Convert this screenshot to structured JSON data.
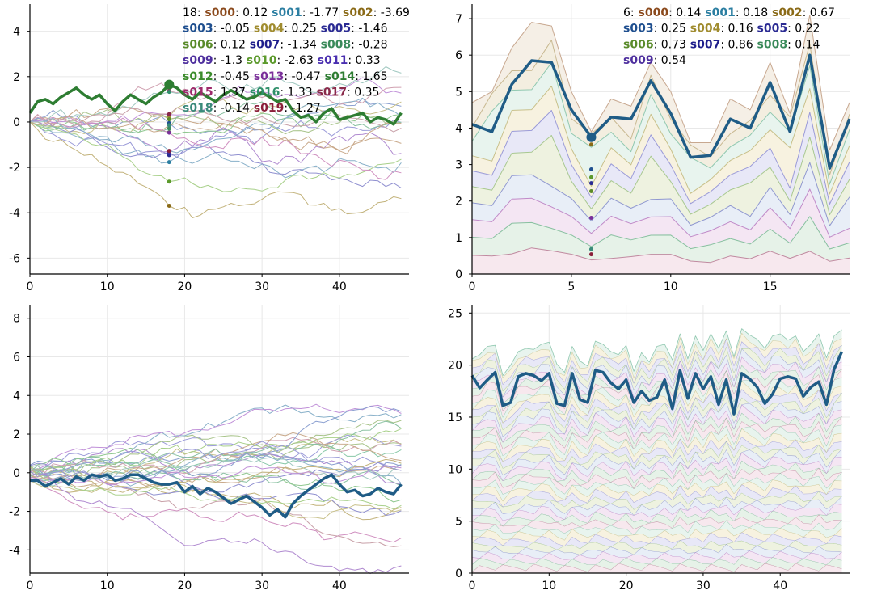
{
  "chart_data": [
    {
      "type": "line",
      "title": "",
      "xlabel": "",
      "ylabel": "",
      "xlim": [
        0,
        49
      ],
      "ylim": [
        -6.7,
        5.2
      ],
      "x_ticks": [
        0,
        10,
        20,
        30,
        40
      ],
      "y_ticks": [
        -6,
        -4,
        -2,
        0,
        2,
        4
      ],
      "grid": true,
      "stacked": false,
      "n_series": 20,
      "highlighted_series": "s014",
      "hover_index": 18,
      "legend": {
        "placement": "top-right",
        "rows": [
          [
            "18:",
            "s000",
            "0.12",
            "s001",
            "-1.77",
            "s002",
            "-3.69"
          ],
          [
            "s003",
            "-0.05",
            "s004",
            "0.25",
            "s005",
            "-1.46"
          ],
          [
            "s006",
            "0.12",
            "s007",
            "-1.34",
            "s008",
            "-0.28"
          ],
          [
            "s009",
            "-1.3",
            "s010",
            "-2.63",
            "s011",
            "0.33"
          ],
          [
            "s012",
            "-0.45",
            "s013",
            "-0.47",
            "s014",
            "1.65"
          ],
          [
            "s015",
            "1.37",
            "s016",
            "1.33",
            "s017",
            "0.35"
          ],
          [
            "s018",
            "-0.14",
            "s019",
            "-1.27"
          ]
        ],
        "boxed": "s014"
      },
      "hover_values": {
        "s000": 0.12,
        "s001": -1.77,
        "s002": -3.69,
        "s003": -0.05,
        "s004": 0.25,
        "s005": -1.46,
        "s006": 0.12,
        "s007": -1.34,
        "s008": -0.28,
        "s009": -1.3,
        "s010": -2.63,
        "s011": 0.33,
        "s012": -0.45,
        "s013": -0.47,
        "s014": 1.65,
        "s015": 1.37,
        "s016": 1.33,
        "s017": 0.35,
        "s018": -0.14,
        "s019": -1.27
      },
      "highlight_values": [
        0.4,
        0.9,
        1.0,
        0.8,
        1.1,
        1.3,
        1.5,
        1.2,
        1.0,
        1.2,
        0.8,
        0.5,
        0.9,
        1.2,
        1.0,
        0.8,
        1.1,
        1.3,
        1.65,
        1.5,
        1.2,
        1.0,
        1.3,
        1.1,
        0.9,
        1.2,
        1.4,
        1.2,
        1.0,
        1.1,
        1.3,
        1.1,
        0.9,
        1.0,
        0.5,
        0.2,
        0.3,
        0.0,
        0.4,
        0.6,
        0.1,
        0.2,
        0.3,
        0.4,
        0.0,
        0.2,
        0.1,
        -0.1,
        0.4
      ]
    },
    {
      "type": "area",
      "title": "",
      "xlabel": "",
      "ylabel": "",
      "xlim": [
        0,
        19
      ],
      "ylim": [
        0,
        7.4
      ],
      "x_ticks": [
        0,
        5,
        10,
        15
      ],
      "y_ticks": [
        0,
        1,
        2,
        3,
        4,
        5,
        6,
        7
      ],
      "grid": true,
      "stacked": true,
      "n_series": 10,
      "highlighted_series": "s001",
      "hover_index": 6,
      "legend": {
        "placement": "top-right",
        "rows": [
          [
            "6:",
            "s000",
            "0.14",
            "s001",
            "0.18",
            "s002",
            "0.67"
          ],
          [
            "s003",
            "0.25",
            "s004",
            "0.16",
            "s005",
            "0.22"
          ],
          [
            "s006",
            "0.73",
            "s007",
            "0.86",
            "s008",
            "0.14"
          ],
          [
            "s009",
            "0.54"
          ]
        ],
        "boxed": "s001"
      },
      "hover_values": {
        "s000": 0.14,
        "s001": 0.18,
        "s002": 0.67,
        "s003": 0.25,
        "s004": 0.16,
        "s005": 0.22,
        "s006": 0.73,
        "s007": 0.86,
        "s008": 0.14,
        "s009": 0.54
      },
      "highlight_values": [
        4.1,
        3.9,
        5.2,
        5.85,
        5.8,
        4.5,
        3.75,
        4.3,
        4.25,
        5.3,
        4.4,
        3.2,
        3.25,
        4.25,
        4.0,
        5.25,
        3.9,
        6.0,
        2.9,
        4.25
      ],
      "top_values": [
        4.7,
        5.0,
        6.2,
        6.9,
        6.8,
        5.0,
        3.9,
        4.8,
        4.6,
        5.8,
        5.0,
        3.6,
        3.6,
        4.8,
        4.5,
        5.8,
        4.4,
        7.1,
        3.4,
        4.7
      ]
    },
    {
      "type": "line",
      "title": "",
      "xlabel": "",
      "ylabel": "",
      "xlim": [
        0,
        49
      ],
      "ylim": [
        -5.2,
        8.7
      ],
      "x_ticks": [
        0,
        10,
        20,
        30,
        40
      ],
      "y_ticks": [
        -4,
        -2,
        0,
        2,
        4,
        6,
        8
      ],
      "grid": true,
      "stacked": false,
      "n_series": 30,
      "highlight_values": [
        -0.4,
        -0.4,
        -0.7,
        -0.5,
        -0.3,
        -0.6,
        -0.2,
        -0.4,
        -0.1,
        -0.2,
        -0.1,
        -0.4,
        -0.3,
        -0.1,
        -0.1,
        -0.3,
        -0.5,
        -0.6,
        -0.6,
        -0.5,
        -1.0,
        -0.7,
        -1.1,
        -0.8,
        -1.0,
        -1.3,
        -1.6,
        -1.4,
        -1.2,
        -1.5,
        -1.8,
        -2.2,
        -1.9,
        -2.3,
        -1.6,
        -1.2,
        -0.9,
        -0.6,
        -0.3,
        -0.1,
        -0.6,
        -1.0,
        -0.9,
        -1.2,
        -1.1,
        -0.8,
        -1.0,
        -1.1,
        -0.6
      ]
    },
    {
      "type": "area",
      "title": "",
      "xlabel": "",
      "ylabel": "",
      "xlim": [
        0,
        49
      ],
      "ylim": [
        0,
        25.8
      ],
      "x_ticks": [
        0,
        10,
        20,
        30,
        40
      ],
      "y_ticks": [
        0,
        5,
        10,
        15,
        20,
        25
      ],
      "grid": true,
      "stacked": true,
      "n_series": 40,
      "highlight_values": [
        19.0,
        17.8,
        18.6,
        19.3,
        16.1,
        16.4,
        18.9,
        19.2,
        19.0,
        18.5,
        19.2,
        16.3,
        16.1,
        19.2,
        16.7,
        16.4,
        19.5,
        19.3,
        18.3,
        17.7,
        18.6,
        16.4,
        17.5,
        16.6,
        16.9,
        18.6,
        15.8,
        19.5,
        16.8,
        19.2,
        17.7,
        18.9,
        16.2,
        18.6,
        15.3,
        19.2,
        18.7,
        17.9,
        16.3,
        17.2,
        18.7,
        18.9,
        18.7,
        17.0,
        17.9,
        18.4,
        16.2,
        19.6,
        21.3
      ],
      "top_values": [
        20.6,
        21.0,
        21.8,
        21.9,
        19.0,
        20.0,
        21.3,
        21.6,
        21.5,
        22.0,
        22.2,
        20.1,
        19.3,
        21.8,
        20.4,
        19.9,
        22.3,
        22.0,
        21.3,
        21.0,
        21.9,
        19.4,
        21.2,
        20.3,
        21.8,
        22.0,
        20.5,
        23.0,
        20.6,
        22.8,
        21.4,
        23.0,
        21.6,
        23.3,
        20.8,
        23.5,
        22.9,
        22.5,
        21.6,
        22.8,
        23.0,
        22.4,
        22.8,
        21.3,
        22.0,
        23.0,
        20.7,
        22.8,
        23.4
      ]
    }
  ]
}
